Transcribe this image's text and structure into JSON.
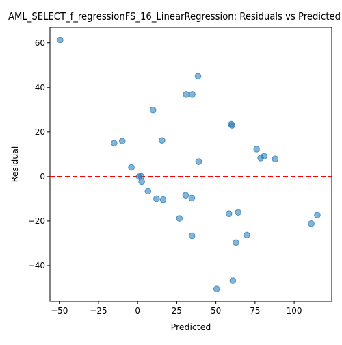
{
  "chart_data": {
    "type": "scatter",
    "title": "AML_SELECT_f_regressionFS_16_LinearRegression: Residuals vs Predicted",
    "xlabel": "Predicted",
    "ylabel": "Residual",
    "xlim": [
      -56,
      124
    ],
    "ylim": [
      -56,
      67
    ],
    "x_ticks": [
      -50,
      -25,
      0,
      25,
      50,
      75,
      100
    ],
    "y_ticks": [
      -40,
      -20,
      0,
      20,
      40,
      60
    ],
    "grid": false,
    "reference_line": {
      "y": 0,
      "style": "dashed",
      "color": "#ff0000"
    },
    "point_color": "#1f77b4",
    "points": [
      {
        "x": -49.5,
        "y": 61.3
      },
      {
        "x": 38.6,
        "y": 45.1
      },
      {
        "x": 31.0,
        "y": 36.9
      },
      {
        "x": 34.9,
        "y": 36.9
      },
      {
        "x": 9.8,
        "y": 29.9
      },
      {
        "x": 59.8,
        "y": 23.5
      },
      {
        "x": 60.3,
        "y": 23.0
      },
      {
        "x": 15.6,
        "y": 16.2
      },
      {
        "x": -15.0,
        "y": 15.0
      },
      {
        "x": -9.8,
        "y": 15.9
      },
      {
        "x": 76.0,
        "y": 12.3
      },
      {
        "x": 80.8,
        "y": 9.1
      },
      {
        "x": 78.6,
        "y": 8.3
      },
      {
        "x": 87.9,
        "y": 7.9
      },
      {
        "x": 39.0,
        "y": 6.7
      },
      {
        "x": -4.0,
        "y": 4.1
      },
      {
        "x": 1.0,
        "y": 0.0
      },
      {
        "x": 2.3,
        "y": 0.1
      },
      {
        "x": 2.6,
        "y": -2.3
      },
      {
        "x": 6.6,
        "y": -6.6
      },
      {
        "x": 12.1,
        "y": -10.0
      },
      {
        "x": 16.3,
        "y": -10.4
      },
      {
        "x": 30.7,
        "y": -8.4
      },
      {
        "x": 34.6,
        "y": -9.7
      },
      {
        "x": 58.3,
        "y": -16.7
      },
      {
        "x": 64.2,
        "y": -16.1
      },
      {
        "x": 26.7,
        "y": -18.8
      },
      {
        "x": 110.9,
        "y": -21.2
      },
      {
        "x": 114.8,
        "y": -17.3
      },
      {
        "x": 34.7,
        "y": -26.6
      },
      {
        "x": 69.8,
        "y": -26.3
      },
      {
        "x": 62.8,
        "y": -29.7
      },
      {
        "x": 60.8,
        "y": -46.8
      },
      {
        "x": 50.5,
        "y": -50.5
      }
    ]
  }
}
